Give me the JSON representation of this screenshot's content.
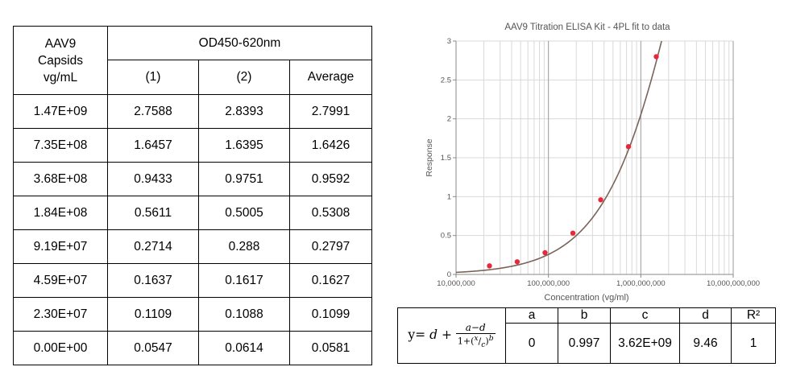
{
  "table": {
    "col1_header": "AAV9 Capsids vg/mL",
    "group_header": "OD450-620nm",
    "sub_headers": [
      "(1)",
      "(2)",
      "Average"
    ],
    "rows": [
      [
        "1.47E+09",
        "2.7588",
        "2.8393",
        "2.7991"
      ],
      [
        "7.35E+08",
        "1.6457",
        "1.6395",
        "1.6426"
      ],
      [
        "3.68E+08",
        "0.9433",
        "0.9751",
        "0.9592"
      ],
      [
        "1.84E+08",
        "0.5611",
        "0.5005",
        "0.5308"
      ],
      [
        "9.19E+07",
        "0.2714",
        "0.288",
        "0.2797"
      ],
      [
        "4.59E+07",
        "0.1637",
        "0.1617",
        "0.1627"
      ],
      [
        "2.30E+07",
        "0.1109",
        "0.1088",
        "0.1099"
      ],
      [
        "0.00E+00",
        "0.0547",
        "0.0614",
        "0.0581"
      ]
    ]
  },
  "chart_data": {
    "type": "scatter",
    "title": "AAV9 Titration ELISA Kit - 4PL fit to data",
    "xlabel": "Concentration (vg/ml)",
    "ylabel": "Response",
    "x_scale": "log",
    "xlim": [
      10000000,
      10000000000
    ],
    "ylim": [
      0,
      3
    ],
    "x_ticks": [
      10000000,
      100000000,
      1000000000,
      10000000000
    ],
    "x_tick_labels": [
      "10,000,000",
      "100,000,000",
      "1,000,000,000",
      "10,000,000,000"
    ],
    "y_ticks": [
      0,
      0.5,
      1,
      1.5,
      2,
      2.5,
      3
    ],
    "y_tick_labels": [
      "0",
      "0.5",
      "1",
      "1.5",
      "2",
      "2.5",
      "3"
    ],
    "grid": true,
    "points": [
      {
        "x": 23000000,
        "y": 0.1099
      },
      {
        "x": 45900000,
        "y": 0.1627
      },
      {
        "x": 91900000,
        "y": 0.2797
      },
      {
        "x": 184000000,
        "y": 0.5308
      },
      {
        "x": 368000000,
        "y": 0.9592
      },
      {
        "x": 735000000,
        "y": 1.6426
      },
      {
        "x": 1470000000,
        "y": 2.7991
      }
    ],
    "fit": {
      "model": "4PL",
      "a": 0,
      "b": 0.997,
      "c": 3620000000,
      "d": 9.46
    },
    "point_color": "#e8283a",
    "curve_color": "#7a6358",
    "grid_color": "#d9d9d9",
    "decade_grid_color": "#9a9a9a"
  },
  "fit_table": {
    "equation_prefix": "y= ",
    "equation_d": "d",
    "equation_plus": " + ",
    "equation_numerator": "a−d",
    "headers": [
      "a",
      "b",
      "c",
      "d",
      "R²"
    ],
    "values": [
      "0",
      "0.997",
      "3.62E+09",
      "9.46",
      "1"
    ]
  }
}
